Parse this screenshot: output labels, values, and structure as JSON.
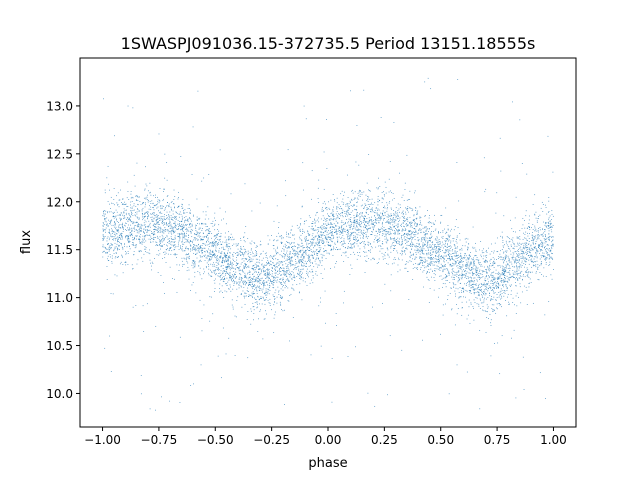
{
  "chart_data": {
    "type": "scatter",
    "title": "1SWASPJ091036.15-372735.5 Period 13151.18555s",
    "xlabel": "phase",
    "ylabel": "flux",
    "xlim": [
      -1.1,
      1.1
    ],
    "ylim": [
      9.65,
      13.5
    ],
    "xticks": [
      -1.0,
      -0.75,
      -0.5,
      -0.25,
      0.0,
      0.25,
      0.5,
      0.75,
      1.0
    ],
    "xtick_labels": [
      "−1.00",
      "−0.75",
      "−0.50",
      "−0.25",
      "0.00",
      "0.25",
      "0.50",
      "0.75",
      "1.00"
    ],
    "yticks": [
      10.0,
      10.5,
      11.0,
      11.5,
      12.0,
      12.5,
      13.0
    ],
    "ytick_labels": [
      "10.0",
      "10.5",
      "11.0",
      "11.5",
      "12.0",
      "12.5",
      "13.0"
    ],
    "grid": false,
    "marker_color": "#1f77b4",
    "series": [
      {
        "phase": [
          -1.0,
          -0.9,
          -0.8,
          -0.7,
          -0.6,
          -0.5,
          -0.4,
          -0.3,
          -0.2,
          -0.1,
          0.0,
          0.1,
          0.2,
          0.3,
          0.4,
          0.5,
          0.6,
          0.7,
          0.8,
          0.9,
          1.0
        ],
        "flux": [
          11.62,
          11.72,
          11.78,
          11.72,
          11.6,
          11.45,
          11.3,
          11.18,
          11.3,
          11.5,
          11.68,
          11.76,
          11.78,
          11.72,
          11.6,
          11.45,
          11.28,
          11.18,
          11.3,
          11.5,
          11.62
        ]
      }
    ]
  }
}
